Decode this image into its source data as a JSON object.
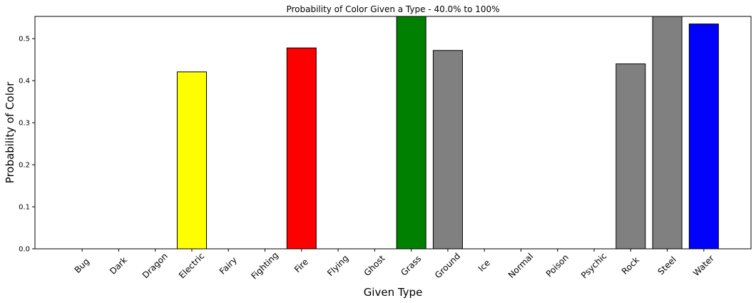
{
  "chart_data": {
    "type": "bar",
    "title": "Probability of Color Given a Type - 40.0% to 100%",
    "xlabel": "Given Type",
    "ylabel": "Probability of Color",
    "categories": [
      "Bug",
      "Dark",
      "Dragon",
      "Electric",
      "Fairy",
      "Fighting",
      "Fire",
      "Flying",
      "Ghost",
      "Grass",
      "Ground",
      "Ice",
      "Normal",
      "Poison",
      "Psychic",
      "Rock",
      "Steel",
      "Water"
    ],
    "values": [
      0,
      0,
      0,
      0.421,
      0,
      0,
      0.478,
      0,
      0,
      0.553,
      0.472,
      0,
      0,
      0,
      0,
      0.44,
      0.553,
      0.535
    ],
    "bar_colors": [
      "#ffffff",
      "#ffffff",
      "#ffffff",
      "#ffff00",
      "#ffffff",
      "#ffffff",
      "#ff0000",
      "#ffffff",
      "#ffffff",
      "#008000",
      "#808080",
      "#ffffff",
      "#ffffff",
      "#ffffff",
      "#ffffff",
      "#808080",
      "#808080",
      "#0000ff"
    ],
    "ylim": [
      0,
      0.553
    ],
    "yticks": [
      0.0,
      0.1,
      0.2,
      0.3,
      0.4,
      0.5
    ],
    "ytick_labels": [
      "0.0",
      "0.1",
      "0.2",
      "0.3",
      "0.4",
      "0.5"
    ],
    "grid": false,
    "legend": "none",
    "xtick_rotation_deg": 45
  }
}
